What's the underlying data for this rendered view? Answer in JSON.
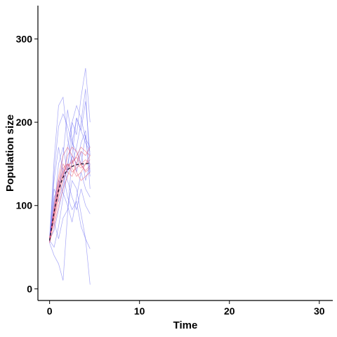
{
  "chart_data": {
    "type": "line",
    "xlabel": "Time",
    "ylabel": "Population size",
    "xlim": [
      -1.3,
      31.5
    ],
    "ylim": [
      -14,
      340
    ],
    "xticks": [
      0,
      10,
      20,
      30
    ],
    "yticks": [
      0,
      100,
      200,
      300
    ],
    "grid": false,
    "colors": {
      "blue_series": "#5c5cf0",
      "red_series": "#e8495e",
      "mean_curve": "#1a0a2e"
    },
    "x": [
      0,
      0.5,
      1,
      1.5,
      2,
      2.5,
      3,
      3.5,
      4,
      4.5
    ],
    "blue_trajectories": [
      {
        "values": [
          58,
          155,
          220,
          230,
          180,
          150,
          170,
          200,
          240,
          140
        ]
      },
      {
        "values": [
          55,
          40,
          30,
          10,
          90,
          160,
          205,
          190,
          225,
          160
        ]
      },
      {
        "values": [
          60,
          95,
          150,
          170,
          140,
          200,
          185,
          230,
          265,
          200
        ]
      },
      {
        "values": [
          57,
          110,
          120,
          160,
          215,
          180,
          140,
          165,
          130,
          150
        ]
      },
      {
        "values": [
          62,
          80,
          60,
          85,
          95,
          130,
          120,
          90,
          60,
          5
        ]
      },
      {
        "values": [
          56,
          130,
          170,
          140,
          110,
          95,
          105,
          75,
          60,
          48
        ]
      },
      {
        "values": [
          59,
          70,
          95,
          120,
          150,
          175,
          205,
          190,
          175,
          165
        ]
      },
      {
        "values": [
          55,
          105,
          130,
          115,
          100,
          80,
          110,
          140,
          120,
          110
        ]
      },
      {
        "values": [
          61,
          140,
          195,
          210,
          195,
          175,
          165,
          150,
          185,
          135
        ]
      },
      {
        "values": [
          58,
          50,
          75,
          110,
          140,
          160,
          150,
          175,
          190,
          120
        ]
      },
      {
        "values": [
          57,
          120,
          105,
          125,
          170,
          200,
          220,
          205,
          180,
          170
        ]
      },
      {
        "values": [
          60,
          90,
          120,
          145,
          130,
          110,
          95,
          120,
          100,
          90
        ]
      }
    ],
    "red_trajectories": [
      {
        "values": [
          55,
          90,
          125,
          145,
          150,
          140,
          145,
          150,
          155,
          150
        ]
      },
      {
        "values": [
          60,
          85,
          115,
          135,
          160,
          170,
          165,
          150,
          140,
          145
        ]
      },
      {
        "values": [
          58,
          95,
          130,
          150,
          140,
          135,
          150,
          165,
          160,
          170
        ]
      },
      {
        "values": [
          62,
          80,
          110,
          130,
          145,
          155,
          140,
          130,
          135,
          140
        ]
      },
      {
        "values": [
          57,
          100,
          135,
          160,
          170,
          160,
          150,
          145,
          150,
          155
        ]
      },
      {
        "values": [
          56,
          75,
          100,
          120,
          135,
          150,
          160,
          170,
          165,
          160
        ]
      },
      {
        "values": [
          59,
          92,
          122,
          140,
          150,
          145,
          135,
          140,
          150,
          160
        ]
      },
      {
        "values": [
          61,
          88,
          118,
          138,
          148,
          152,
          158,
          148,
          142,
          148
        ]
      }
    ],
    "mean_curve": {
      "x": [
        0,
        0.25,
        0.5,
        0.75,
        1,
        1.25,
        1.5,
        1.75,
        2,
        2.5,
        3,
        3.5,
        4,
        4.5
      ],
      "values": [
        58,
        75,
        92,
        106,
        118,
        127,
        134,
        139,
        143,
        147,
        149,
        150,
        150,
        151
      ]
    }
  }
}
